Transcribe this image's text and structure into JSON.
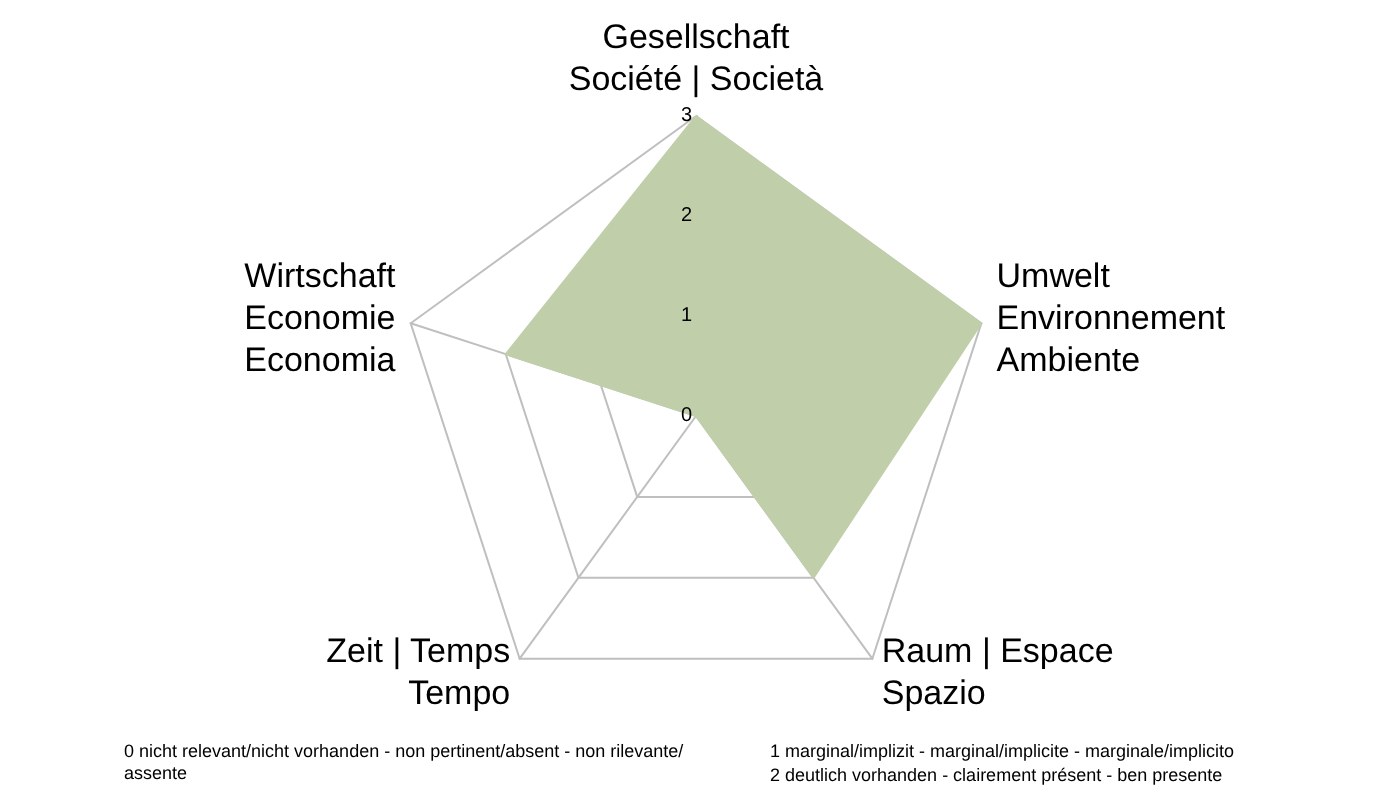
{
  "chart_data": {
    "type": "radar",
    "categories": [
      "Gesellschaft\nSociété | Società",
      "Umwelt\nEnvironnement\nAmbiente",
      "Raum | Espace\nSpazio",
      "Zeit | Temps\nTempo",
      "Wirtschaft\nEconomie\nEconomia"
    ],
    "series": [
      {
        "color": "#c0cfaa",
        "values": [
          3,
          3,
          2,
          0,
          2
        ]
      }
    ],
    "ylim": [
      0,
      3
    ],
    "yticks": [
      0,
      1,
      2,
      3
    ],
    "grid": true,
    "marker": "none",
    "annotations": [
      "0 nicht relevant/nicht vorhanden - non pertinent/absent - non rilevante/assente",
      "1 marginal/implizit - marginal/implicite - marginale/implicito",
      "2 deutlich vorhanden - clairement présent - ben presente"
    ]
  }
}
